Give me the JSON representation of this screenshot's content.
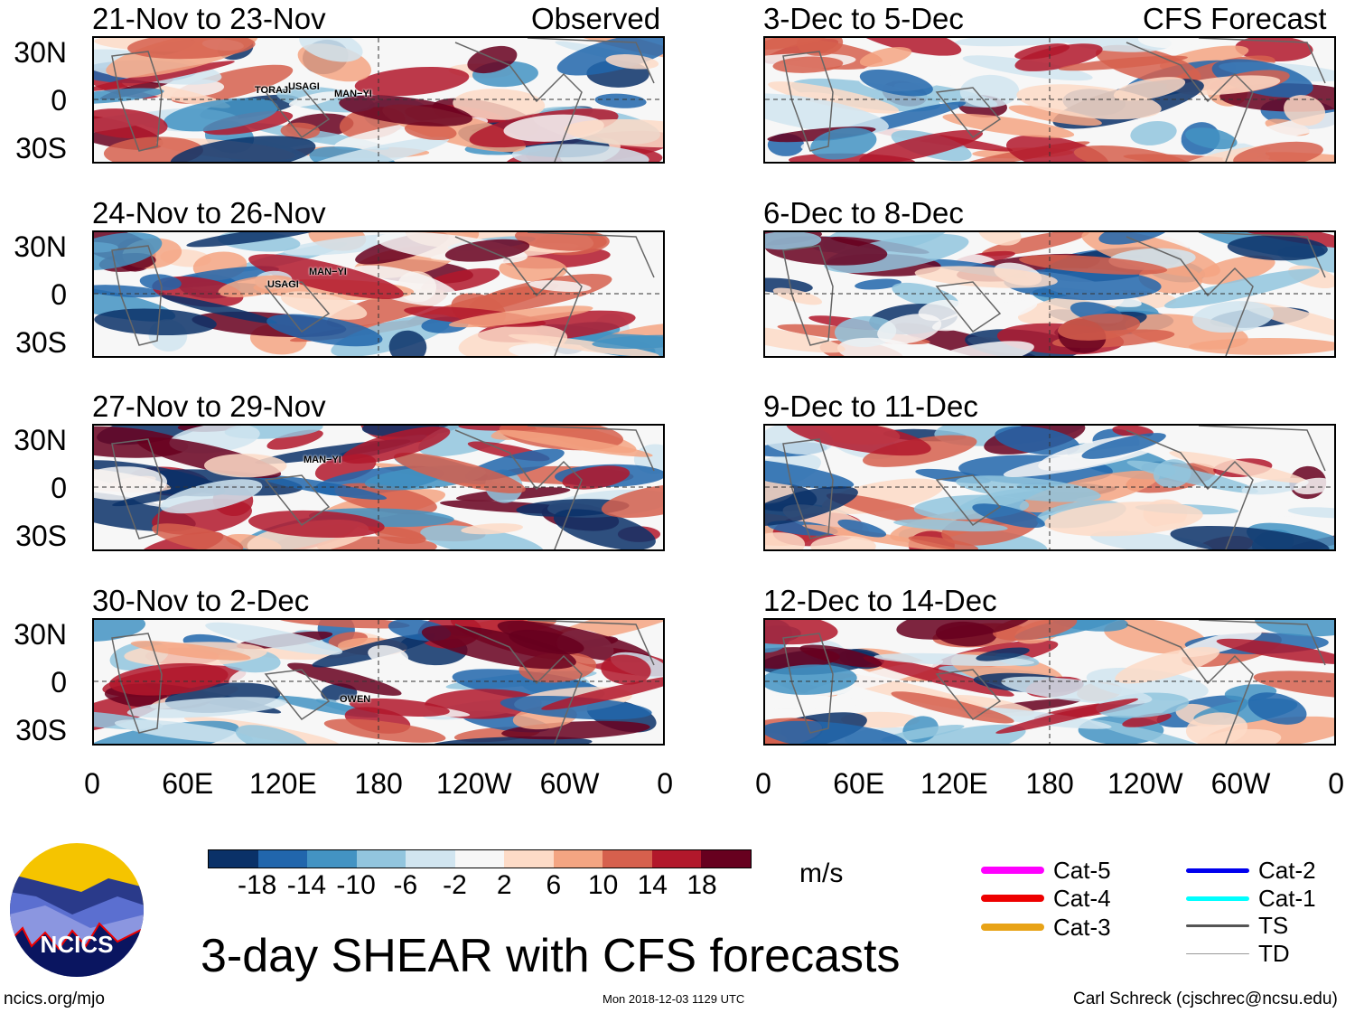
{
  "left_header": "Observed",
  "right_header": "CFS Forecast",
  "left_panels": [
    {
      "title": "21-Nov to 23-Nov",
      "storms": [
        {
          "name": "TORAJI"
        },
        {
          "name": "USAGI"
        },
        {
          "name": "MAN−YI"
        }
      ]
    },
    {
      "title": "24-Nov to 26-Nov",
      "storms": [
        {
          "name": "MAN−YI"
        },
        {
          "name": "USAGI"
        }
      ]
    },
    {
      "title": "27-Nov to 29-Nov",
      "storms": [
        {
          "name": "MAN−YI"
        }
      ]
    },
    {
      "title": "30-Nov to 2-Dec",
      "storms": [
        {
          "name": "OWEN"
        }
      ]
    }
  ],
  "right_panels": [
    {
      "title": "3-Dec to 5-Dec"
    },
    {
      "title": "6-Dec to 8-Dec"
    },
    {
      "title": "9-Dec to 11-Dec"
    },
    {
      "title": "12-Dec to 14-Dec"
    }
  ],
  "lat_labels": [
    "30N",
    "0",
    "30S"
  ],
  "lon_labels": [
    "0",
    "60E",
    "120E",
    "180",
    "120W",
    "60W",
    "0"
  ],
  "colorbar": {
    "colors": [
      "#0a3168",
      "#2166ac",
      "#4393c3",
      "#92c5de",
      "#d1e5f0",
      "#f7f7f7",
      "#fddbc7",
      "#f4a582",
      "#d6604d",
      "#b2182b",
      "#67001f"
    ],
    "labels": [
      "-18",
      "-14",
      "-10",
      "-6",
      "-2",
      "2",
      "6",
      "10",
      "14",
      "18"
    ],
    "units": "m/s"
  },
  "legend": [
    {
      "label": "Cat-5",
      "color": "#ff00ff"
    },
    {
      "label": "Cat-4",
      "color": "#ee0000"
    },
    {
      "label": "Cat-3",
      "color": "#e8a317"
    },
    {
      "label": "Cat-2",
      "color": "#0000ee"
    },
    {
      "label": "Cat-1",
      "color": "#00ffff"
    },
    {
      "label": "TS",
      "color": "#555555"
    },
    {
      "label": "TD",
      "color": "#999999"
    }
  ],
  "title": "3-day SHEAR with CFS forecasts",
  "logo_text": "NCICS",
  "footer": {
    "left": "ncics.org/mjo",
    "center": "Mon 2018-12-03 1129 UTC",
    "right": "Carl Schreck (cjschrec@ncsu.edu)"
  }
}
